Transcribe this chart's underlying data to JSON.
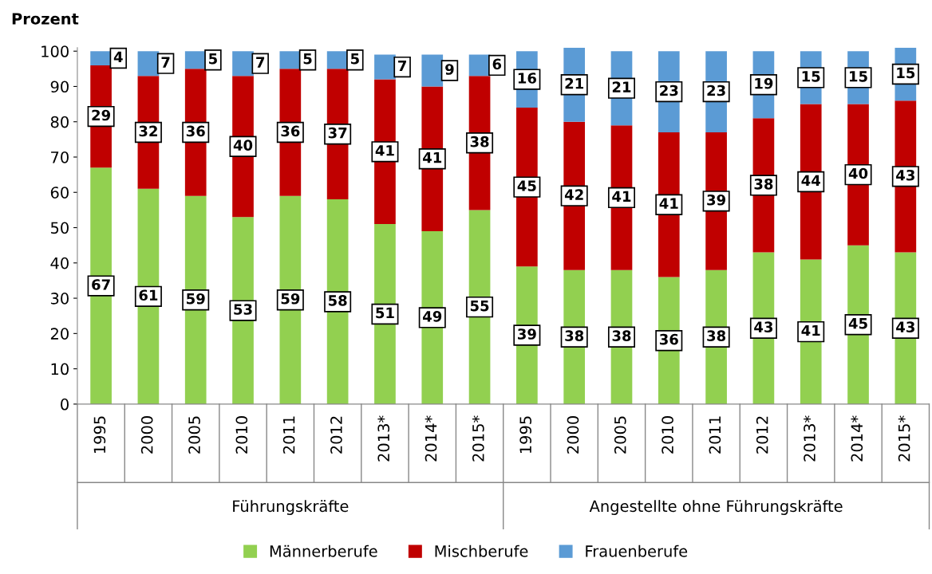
{
  "chart_data": {
    "type": "bar",
    "stacked": true,
    "ylabel": "Prozent",
    "categories": [
      "1995",
      "2000",
      "2005",
      "2010",
      "2011",
      "2012",
      "2013*",
      "2014*",
      "2015*",
      "1995",
      "2000",
      "2005",
      "2010",
      "2011",
      "2012",
      "2013*",
      "2014*",
      "2015*"
    ],
    "series": [
      {
        "name": "Männerberufe",
        "color": "#92d050",
        "values": [
          67,
          61,
          59,
          53,
          59,
          58,
          51,
          49,
          55,
          39,
          38,
          38,
          36,
          38,
          43,
          41,
          45,
          43
        ]
      },
      {
        "name": "Mischberufe",
        "color": "#c00000",
        "values": [
          29,
          32,
          36,
          40,
          36,
          37,
          41,
          41,
          38,
          45,
          42,
          41,
          41,
          39,
          38,
          44,
          40,
          43
        ]
      },
      {
        "name": "Frauenberufe",
        "color": "#5b9bd5",
        "values": [
          4,
          7,
          5,
          7,
          5,
          5,
          7,
          9,
          6,
          16,
          21,
          21,
          23,
          23,
          19,
          15,
          15,
          15
        ]
      }
    ],
    "annotations": [
      "Führungskräfte",
      "Angestellte ohne Führungskräfte"
    ],
    "ylim": [
      0,
      101
    ],
    "yticks": [
      0,
      10,
      20,
      30,
      40,
      50,
      60,
      70,
      80,
      90,
      100
    ],
    "data_labels": true,
    "grid": false,
    "legend": "bottom"
  }
}
